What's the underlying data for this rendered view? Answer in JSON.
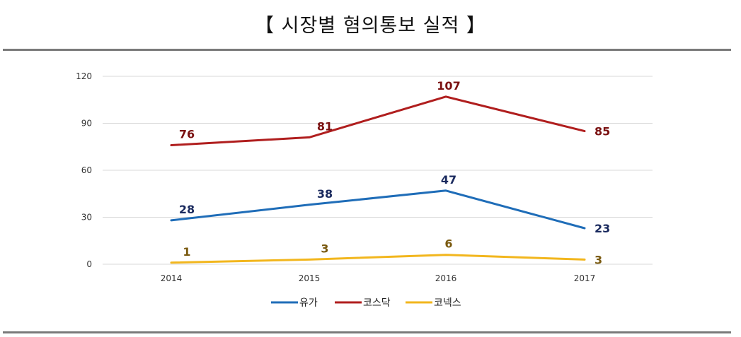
{
  "title": "【 시장별 혐의통보 실적 】",
  "chart_data": {
    "type": "line",
    "categories": [
      "2014",
      "2015",
      "2016",
      "2017"
    ],
    "yticks": [
      0,
      30,
      60,
      90,
      120
    ],
    "ylim": [
      0,
      120
    ],
    "grid": true,
    "legend_position": "bottom",
    "series": [
      {
        "name": "유가",
        "values": [
          28,
          38,
          47,
          23
        ],
        "color": "#1f6db8",
        "label_color": "#1a2a5e"
      },
      {
        "name": "코스닥",
        "values": [
          76,
          81,
          107,
          85
        ],
        "color": "#b01e1e",
        "label_color": "#7a1111"
      },
      {
        "name": "코넥스",
        "values": [
          1,
          3,
          6,
          3
        ],
        "color": "#f2b61d",
        "label_color": "#7a5a10"
      }
    ]
  }
}
